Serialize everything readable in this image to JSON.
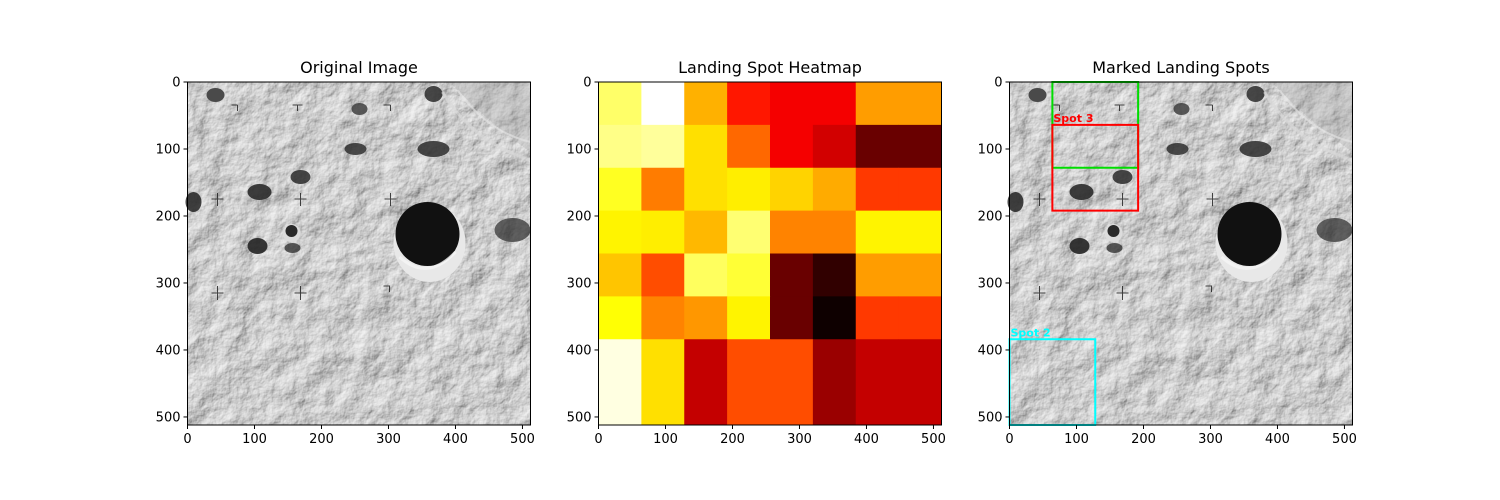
{
  "chart_data": [
    {
      "type": "image",
      "title": "Original Image",
      "xlim": [
        0,
        512
      ],
      "ylim": [
        512,
        0
      ],
      "xticks": [
        0,
        100,
        200,
        300,
        400,
        500
      ],
      "yticks": [
        0,
        100,
        200,
        300,
        400,
        500
      ],
      "xtick_labels": [
        "0",
        "100",
        "200",
        "300",
        "400",
        "500"
      ],
      "ytick_labels": [
        "0",
        "100",
        "200",
        "300",
        "400",
        "500"
      ],
      "colormap": "gray"
    },
    {
      "type": "heatmap",
      "title": "Landing Spot Heatmap",
      "xlim": [
        0,
        512
      ],
      "ylim": [
        512,
        0
      ],
      "xticks": [
        0,
        100,
        200,
        300,
        400,
        500
      ],
      "yticks": [
        0,
        100,
        200,
        300,
        400,
        500
      ],
      "xtick_labels": [
        "0",
        "100",
        "200",
        "300",
        "400",
        "500"
      ],
      "ytick_labels": [
        "0",
        "100",
        "200",
        "300",
        "400",
        "500"
      ],
      "colormap": "hot",
      "cell_size": 64,
      "grid_values": [
        [
          0.85,
          1.0,
          0.63,
          0.4,
          0.35,
          0.35,
          0.6,
          0.6
        ],
        [
          0.88,
          0.9,
          0.7,
          0.52,
          0.35,
          0.3,
          0.15,
          0.15
        ],
        [
          0.78,
          0.55,
          0.7,
          0.72,
          0.68,
          0.62,
          0.45,
          0.45
        ],
        [
          0.73,
          0.72,
          0.64,
          0.86,
          0.56,
          0.56,
          0.73,
          0.73
        ],
        [
          0.66,
          0.48,
          0.84,
          0.8,
          0.15,
          0.07,
          0.6,
          0.6
        ],
        [
          0.75,
          0.56,
          0.59,
          0.73,
          0.15,
          0.02,
          0.45,
          0.45
        ],
        [
          0.97,
          0.7,
          0.28,
          0.48,
          0.48,
          0.22,
          0.28,
          0.28
        ],
        [
          0.97,
          0.7,
          0.28,
          0.48,
          0.48,
          0.22,
          0.28,
          0.28
        ]
      ]
    },
    {
      "type": "image",
      "title": "Marked Landing Spots",
      "xlim": [
        0,
        512
      ],
      "ylim": [
        512,
        0
      ],
      "xticks": [
        0,
        100,
        200,
        300,
        400,
        500
      ],
      "yticks": [
        0,
        100,
        200,
        300,
        400,
        500
      ],
      "xtick_labels": [
        "0",
        "100",
        "200",
        "300",
        "400",
        "500"
      ],
      "ytick_labels": [
        "0",
        "100",
        "200",
        "300",
        "400",
        "500"
      ],
      "colormap": "gray",
      "annotations": [
        {
          "label": "",
          "color": "#00dd00",
          "x": [
            64,
            192
          ],
          "y": [
            0,
            128
          ]
        },
        {
          "label": "Spot 3",
          "color": "#ff0000",
          "x": [
            64,
            192
          ],
          "y": [
            64,
            192
          ]
        },
        {
          "label": "Spot 2",
          "color": "#00ffff",
          "x": [
            0,
            128
          ],
          "y": [
            384,
            512
          ]
        }
      ]
    }
  ]
}
